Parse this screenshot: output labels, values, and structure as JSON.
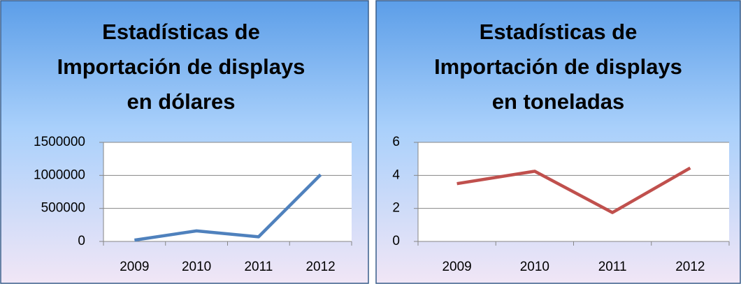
{
  "chart_data": [
    {
      "type": "line",
      "title": [
        "Estadísticas de",
        "Importación de displays",
        "en dólares"
      ],
      "categories": [
        "2009",
        "2010",
        "2011",
        "2012"
      ],
      "series": [
        {
          "name": null,
          "color": "#4f81bd",
          "values": [
            20000,
            160000,
            70000,
            1010000
          ]
        }
      ],
      "ylim": [
        0,
        1500000
      ],
      "yticks": [
        0,
        500000,
        1000000,
        1500000
      ],
      "grid": true
    },
    {
      "type": "line",
      "title": [
        "Estadísticas de",
        "Importación de displays",
        "en toneladas"
      ],
      "categories": [
        "2009",
        "2010",
        "2011",
        "2012"
      ],
      "series": [
        {
          "name": null,
          "color": "#c0504d",
          "values": [
            3.5,
            4.25,
            1.75,
            4.45
          ]
        }
      ],
      "ylim": [
        0,
        6
      ],
      "yticks": [
        0,
        2,
        4,
        6
      ],
      "grid": true
    }
  ]
}
